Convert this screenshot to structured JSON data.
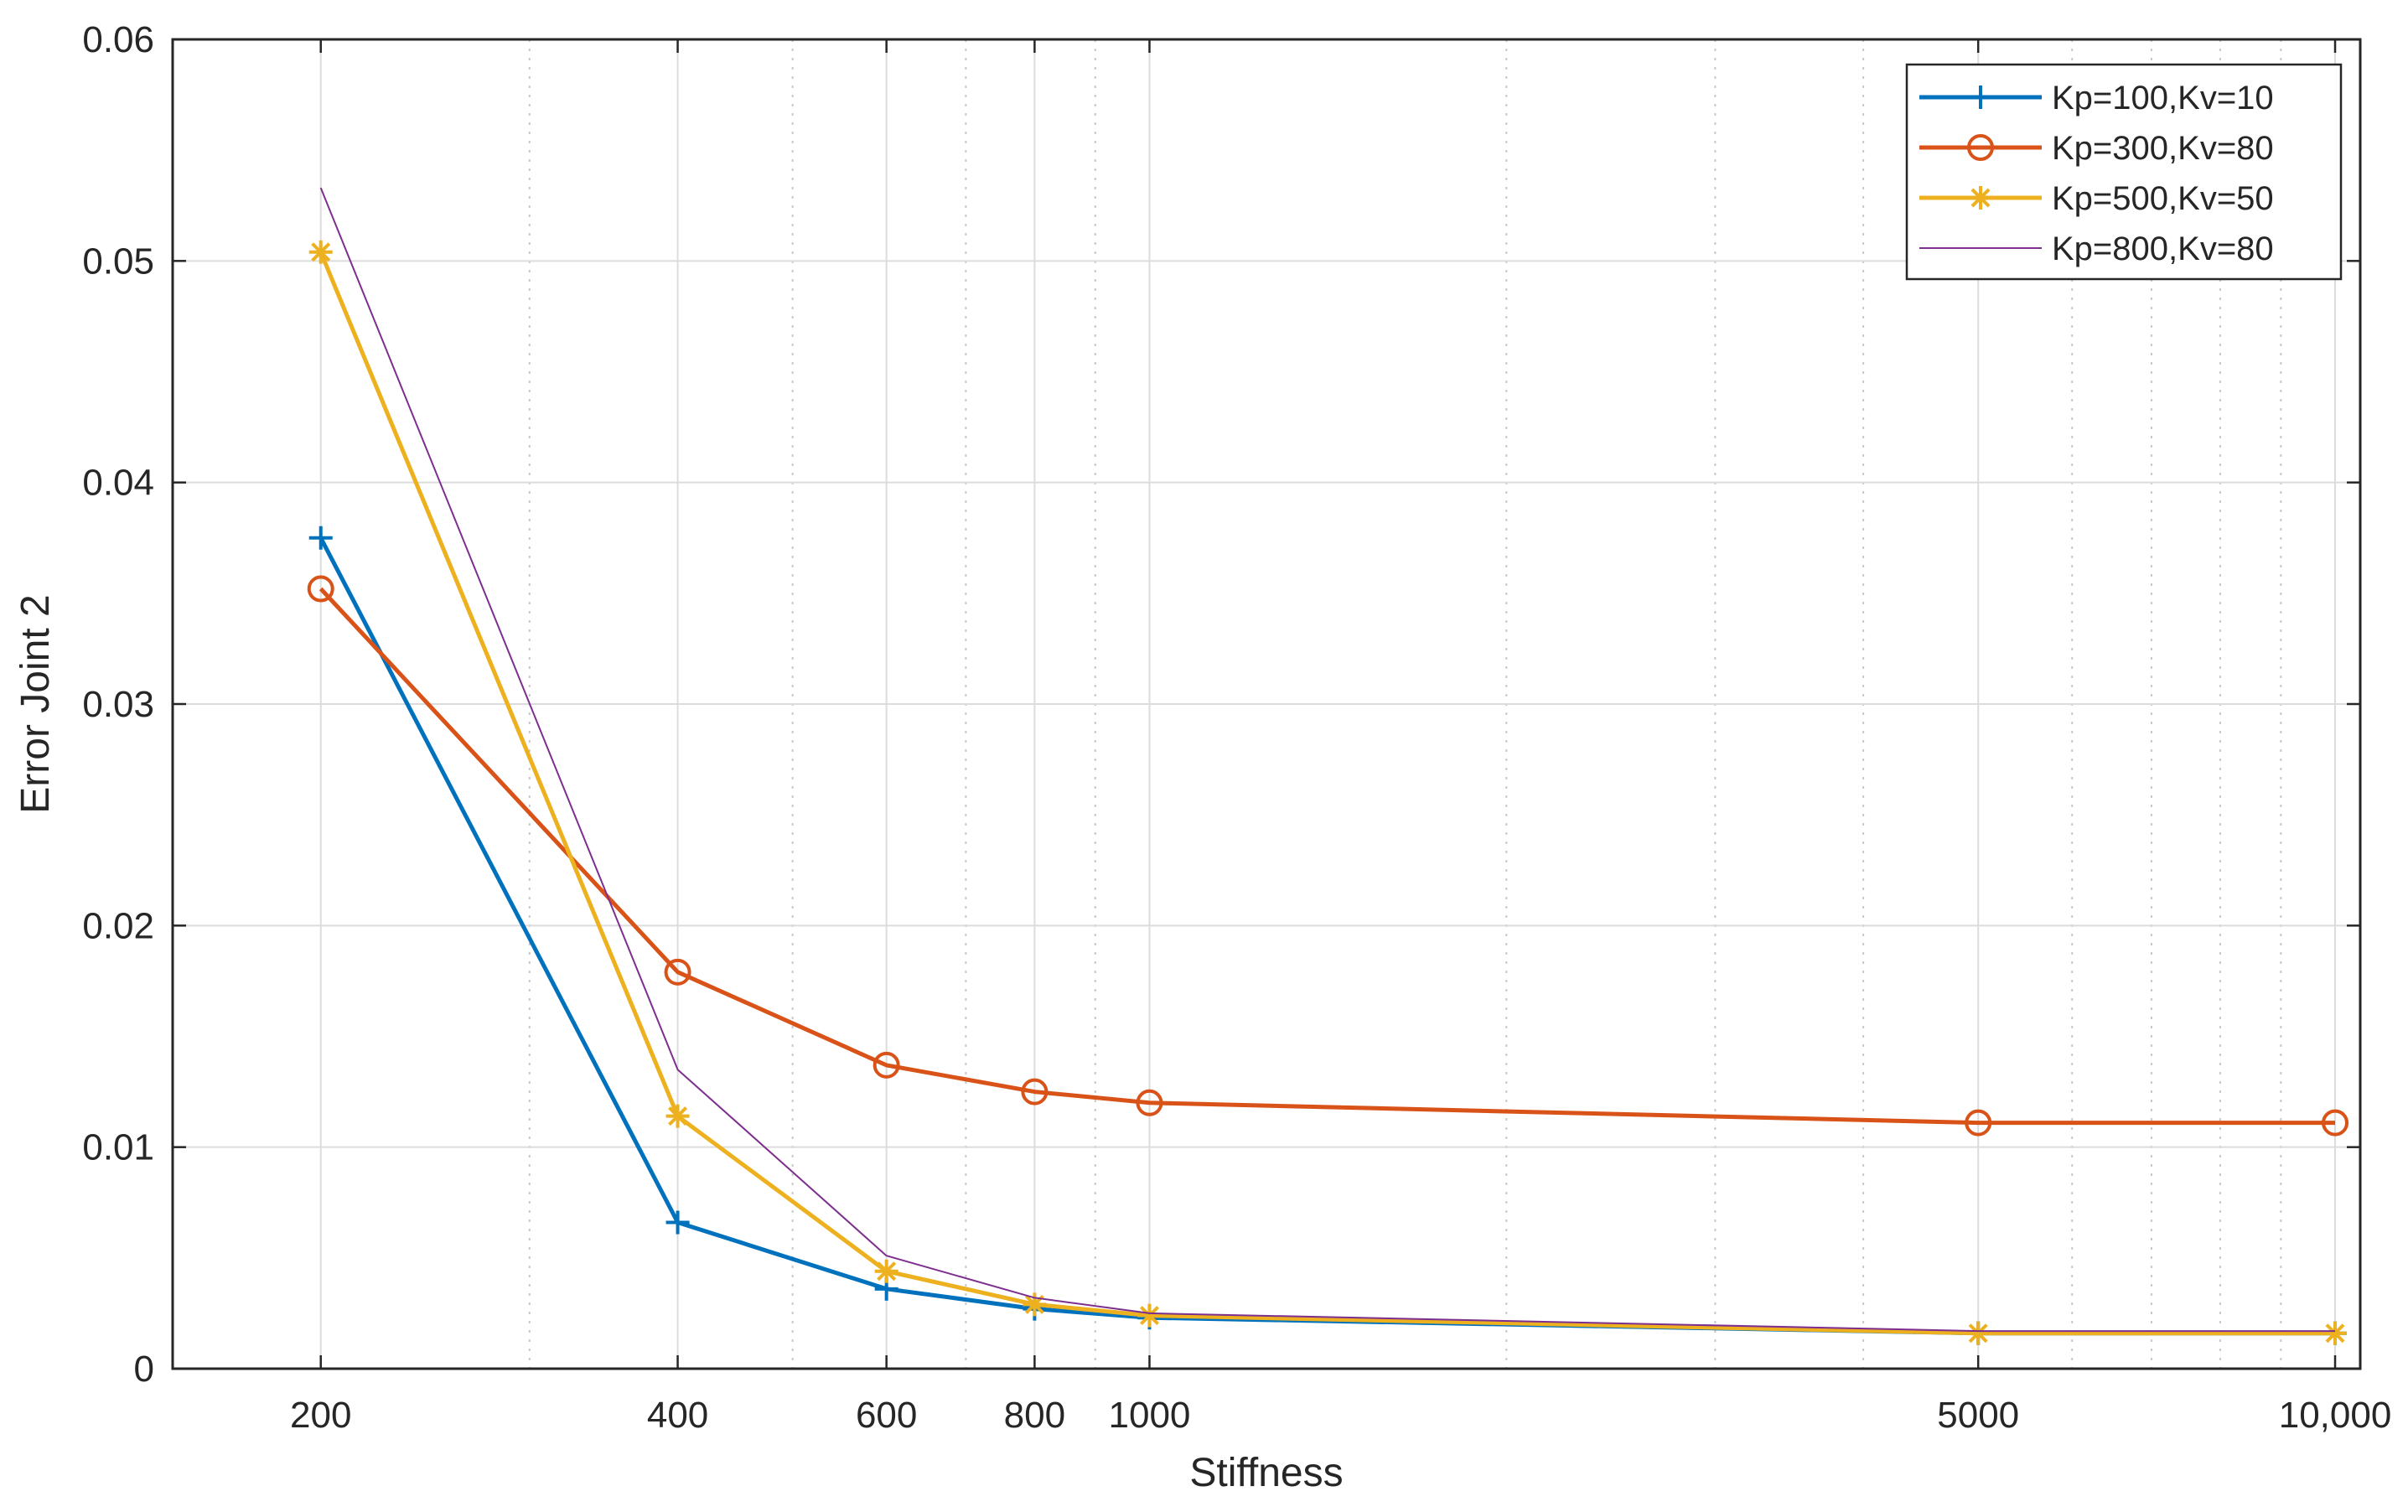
{
  "chart_data": {
    "type": "line",
    "title": "",
    "xlabel": "Stiffness",
    "ylabel": "Error Joint 2",
    "x_scale": "log",
    "xlim": [
      150,
      10500
    ],
    "ylim": [
      0,
      0.06
    ],
    "grid": true,
    "legend_position": "top-right",
    "x": [
      200,
      400,
      600,
      800,
      1000,
      5000,
      10000
    ],
    "x_tick_labels": [
      "200",
      "400",
      "600",
      "800",
      "1000",
      "5000",
      "10,000"
    ],
    "y_ticks": [
      0,
      0.01,
      0.02,
      0.03,
      0.04,
      0.05,
      0.06
    ],
    "y_tick_labels": [
      "0",
      "0.01",
      "0.02",
      "0.03",
      "0.04",
      "0.05",
      "0.06"
    ],
    "series": [
      {
        "name": "Kp=100,Kv=10",
        "color": "#0072bd",
        "marker": "plus",
        "values": [
          0.0375,
          0.0066,
          0.0036,
          0.0027,
          0.0023,
          0.0016,
          0.0016
        ]
      },
      {
        "name": "Kp=300,Kv=80",
        "color": "#d95319",
        "marker": "circle",
        "values": [
          0.0352,
          0.0179,
          0.0137,
          0.0125,
          0.012,
          0.0111,
          0.0111
        ]
      },
      {
        "name": "Kp=500,Kv=50",
        "color": "#edb120",
        "marker": "asterisk",
        "values": [
          0.0504,
          0.0114,
          0.0044,
          0.0029,
          0.0024,
          0.0016,
          0.0016
        ]
      },
      {
        "name": "Kp=800,Kv=80",
        "color": "#7e2f8e",
        "marker": "none",
        "values": [
          0.0533,
          0.0135,
          0.0051,
          0.0032,
          0.0025,
          0.0017,
          0.0017
        ]
      }
    ]
  }
}
